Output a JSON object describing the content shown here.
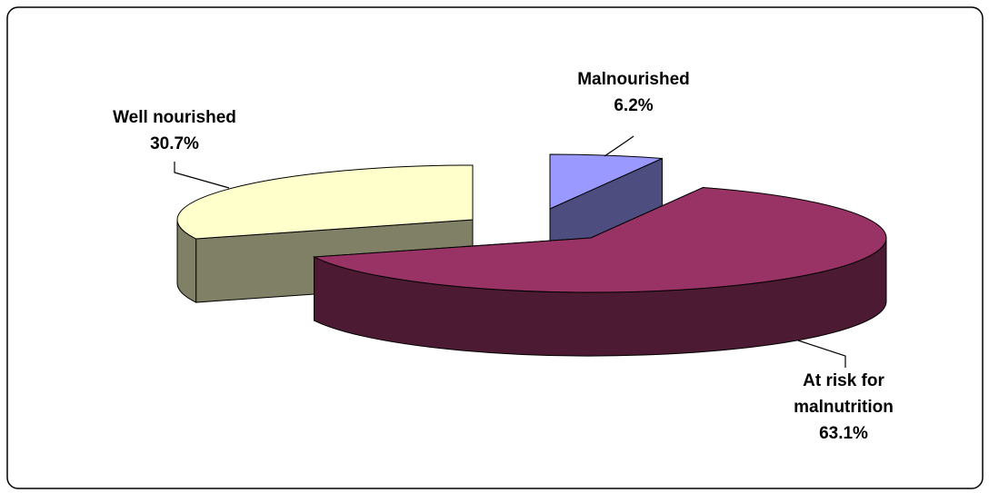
{
  "chart_data": {
    "type": "pie3d",
    "categories": [
      "Malnourished",
      "At risk for malnutrition",
      "Well nourished"
    ],
    "values": [
      6.2,
      63.1,
      30.7
    ],
    "value_labels": [
      "6.2%",
      "63.1%",
      "30.7%"
    ],
    "colors": [
      "#9999ff",
      "#993366",
      "#ffffcc"
    ]
  }
}
